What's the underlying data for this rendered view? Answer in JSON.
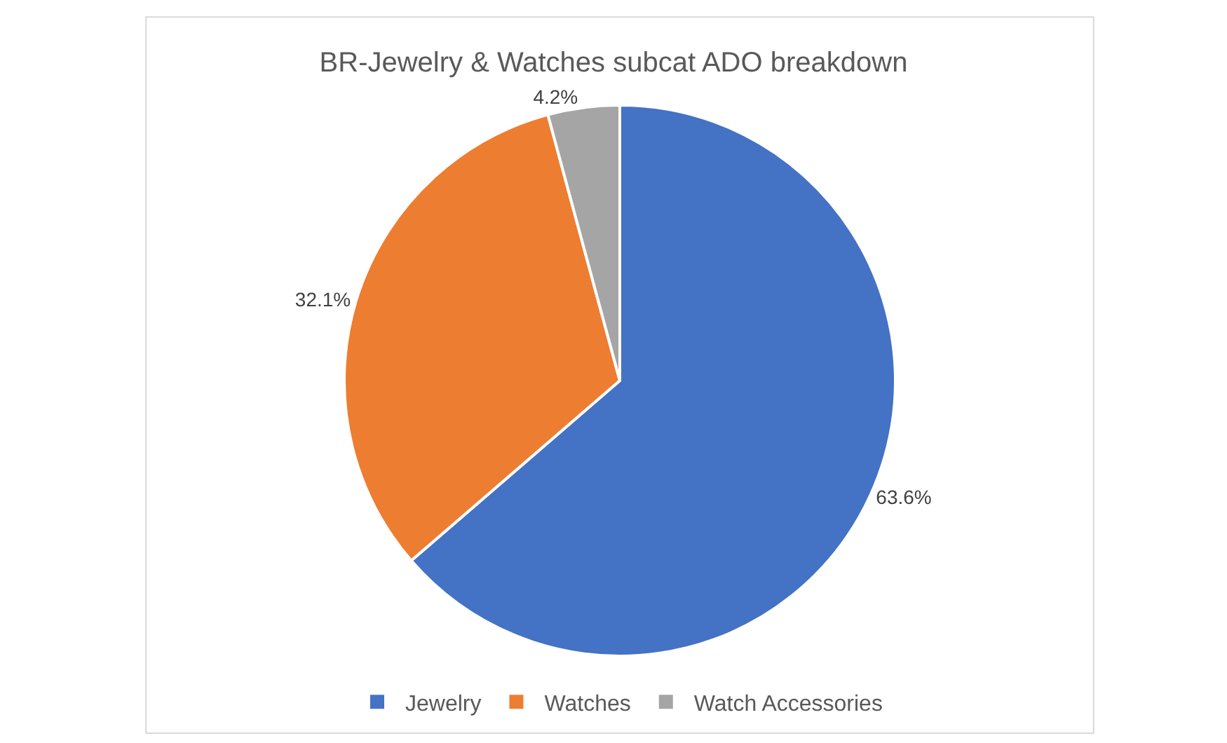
{
  "chart_data": {
    "type": "pie",
    "title": "BR-Jewelry & Watches subcat ADO breakdown",
    "categories": [
      "Jewelry",
      "Watches",
      "Watch Accessories"
    ],
    "values": [
      63.6,
      32.1,
      4.2
    ],
    "colors": [
      "#4472c4",
      "#ed7d31",
      "#a5a5a5"
    ],
    "value_labels": [
      "63.6%",
      "32.1%",
      "4.2%"
    ],
    "legend": "bottom"
  }
}
